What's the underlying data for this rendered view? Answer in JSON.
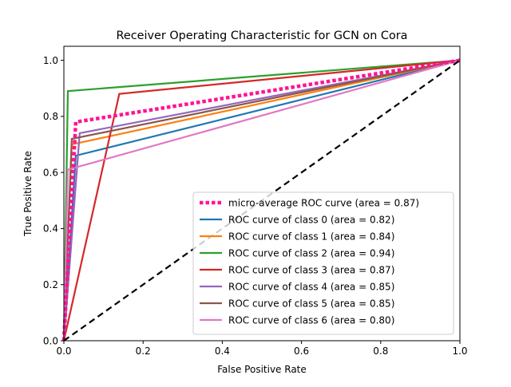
{
  "chart_data": {
    "type": "line",
    "title": "Receiver Operating Characteristic for GCN on Cora",
    "xlabel": "False Positive Rate",
    "ylabel": "True Positive Rate",
    "xlim": [
      0.0,
      1.0
    ],
    "ylim": [
      0.0,
      1.05
    ],
    "xticks": [
      "0.0",
      "0.2",
      "0.4",
      "0.6",
      "0.8",
      "1.0"
    ],
    "yticks": [
      "0.0",
      "0.2",
      "0.4",
      "0.6",
      "0.8",
      "1.0"
    ],
    "grid": false,
    "legend_position": "lower-right",
    "reference_line": {
      "x": [
        0,
        1
      ],
      "y": [
        0,
        1
      ],
      "color": "#000000",
      "style": "dashed"
    },
    "series": [
      {
        "name": "micro-average ROC curve (area = 0.87)",
        "color": "#ff1493",
        "style": "dotted",
        "x": [
          0.0,
          0.03,
          1.0
        ],
        "y": [
          0.0,
          0.78,
          1.0
        ]
      },
      {
        "name": "ROC curve of class 0 (area = 0.82)",
        "color": "#1f77b4",
        "style": "solid",
        "x": [
          0.0,
          0.03,
          1.0
        ],
        "y": [
          0.0,
          0.66,
          1.0
        ]
      },
      {
        "name": "ROC curve of class 1 (area = 0.84)",
        "color": "#ff7f0e",
        "style": "solid",
        "x": [
          0.0,
          0.02,
          1.0
        ],
        "y": [
          0.0,
          0.7,
          1.0
        ]
      },
      {
        "name": "ROC curve of class 2 (area = 0.94)",
        "color": "#2ca02c",
        "style": "solid",
        "x": [
          0.0,
          0.01,
          1.0
        ],
        "y": [
          0.0,
          0.89,
          1.0
        ]
      },
      {
        "name": "ROC curve of class 3 (area = 0.87)",
        "color": "#d62728",
        "style": "solid",
        "x": [
          0.0,
          0.14,
          1.0
        ],
        "y": [
          0.0,
          0.88,
          1.0
        ]
      },
      {
        "name": "ROC curve of class 4 (area = 0.85)",
        "color": "#9467bd",
        "style": "solid",
        "x": [
          0.0,
          0.04,
          1.0
        ],
        "y": [
          0.0,
          0.74,
          1.0
        ]
      },
      {
        "name": "ROC curve of class 5 (area = 0.85)",
        "color": "#8c564b",
        "style": "solid",
        "x": [
          0.0,
          0.02,
          1.0
        ],
        "y": [
          0.0,
          0.72,
          1.0
        ]
      },
      {
        "name": "ROC curve of class 6 (area = 0.80)",
        "color": "#e377c2",
        "style": "solid",
        "x": [
          0.0,
          0.01,
          1.0
        ],
        "y": [
          0.0,
          0.61,
          1.0
        ]
      }
    ]
  }
}
